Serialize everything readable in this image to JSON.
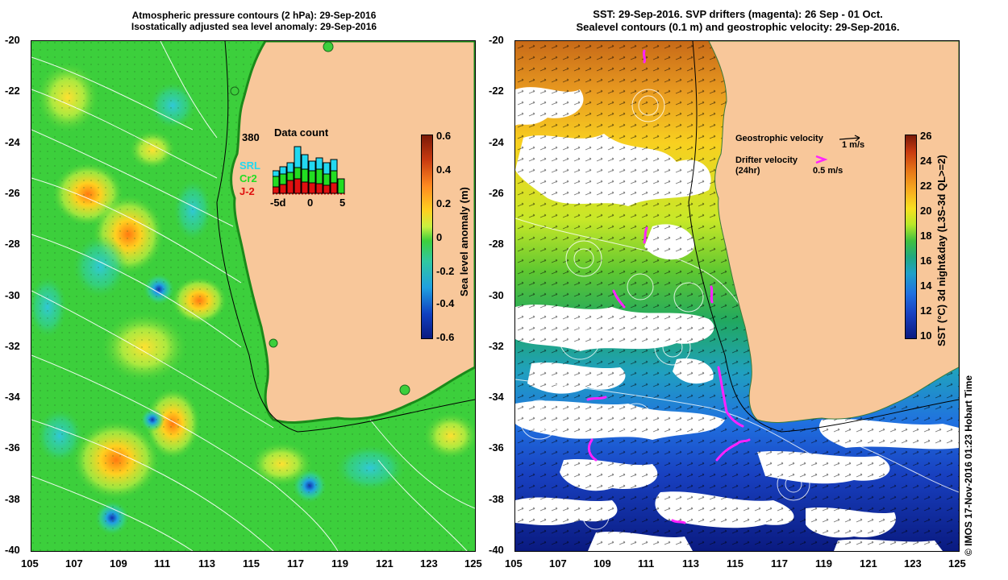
{
  "left_panel": {
    "title_line1": "Atmospheric pressure contours (2 hPa): 29-Sep-2016",
    "title_line2": "Isostatically adjusted sea level anomaly: 29-Sep-2016",
    "colorbar_label": "Sea level anomaly (m)",
    "colorbar_ticks": [
      "0.6",
      "0.4",
      "0.2",
      "0",
      "-0.2",
      "-0.4",
      "-0.6"
    ],
    "inset": {
      "title": "Data count",
      "max_label": "380",
      "legend": [
        {
          "label": "SRL",
          "color": "#22d8f0"
        },
        {
          "label": "Cr2",
          "color": "#22dd22"
        },
        {
          "label": "J-2",
          "color": "#e01010"
        }
      ],
      "x_labels": [
        "-5d",
        "0",
        "5"
      ]
    }
  },
  "right_panel": {
    "title_line1": "SST: 29-Sep-2016. SVP drifters (magenta): 26 Sep - 01 Oct.",
    "title_line2": "Sealevel contours (0.1 m) and geostrophic velocity: 29-Sep-2016.",
    "colorbar_label": "SST (°C) 3d night&day (L3S-3d QL>=2)",
    "colorbar_ticks": [
      "26",
      "24",
      "22",
      "20",
      "18",
      "16",
      "14",
      "12",
      "10"
    ],
    "legend": {
      "geostrophic_label": "Geostrophic velocity",
      "geostrophic_scale": "1 m/s",
      "drifter_label": "Drifter velocity",
      "drifter_sub": "(24hr)",
      "drifter_scale": "0.5 m/s"
    }
  },
  "axes": {
    "lat_labels": [
      "-20",
      "-22",
      "-24",
      "-26",
      "-28",
      "-30",
      "-32",
      "-34",
      "-36",
      "-38",
      "-40"
    ],
    "lon_labels": [
      "105",
      "107",
      "109",
      "111",
      "113",
      "115",
      "117",
      "119",
      "121",
      "123",
      "125"
    ]
  },
  "credit": "© IMOS 17-Nov-2016 01:23 Hobart Time",
  "colors": {
    "land": "#f8c79a",
    "sla_background": "#3ccf3c",
    "sst_warm": "#d2741e",
    "sst_cold": "#0a2aa0",
    "drifter": "#ff22ff"
  }
}
